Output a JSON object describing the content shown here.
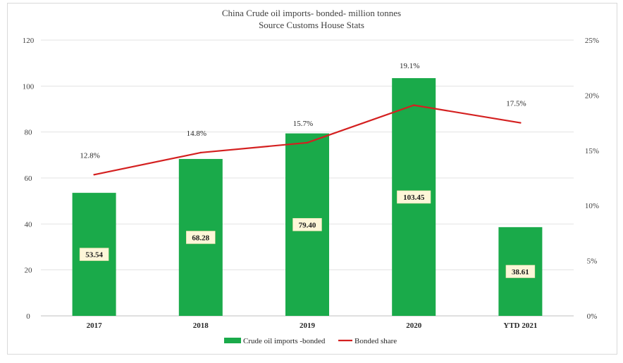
{
  "chart_data": {
    "type": "bar",
    "title": "China Crude oil imports- bonded- million tonnes",
    "subtitle": "Source Customs House Stats",
    "categories": [
      "2017",
      "2018",
      "2019",
      "2020",
      "YTD 2021"
    ],
    "series": [
      {
        "name": "Crude oil imports -bonded",
        "type": "bar",
        "axis": "left",
        "color": "#1aaa4a",
        "values": [
          53.54,
          68.28,
          79.4,
          103.45,
          38.61
        ],
        "labels": [
          "53.54",
          "68.28",
          "79.40",
          "103.45",
          "38.61"
        ]
      },
      {
        "name": "Bonded share",
        "type": "line",
        "axis": "right",
        "color": "#d42020",
        "values": [
          12.8,
          14.8,
          15.7,
          19.1,
          17.5
        ],
        "labels": [
          "12.8%",
          "14.8%",
          "15.7%",
          "19.1%",
          "17.5%"
        ]
      }
    ],
    "y_left": {
      "ylim": [
        0,
        120
      ],
      "ticks": [
        "0",
        "20",
        "40",
        "60",
        "80",
        "100",
        "120"
      ]
    },
    "y_right": {
      "ylim": [
        0,
        25
      ],
      "ticks": [
        "0%",
        "5%",
        "10%",
        "15%",
        "20%",
        "25%"
      ]
    },
    "grid": true,
    "legend": "bottom-center"
  }
}
